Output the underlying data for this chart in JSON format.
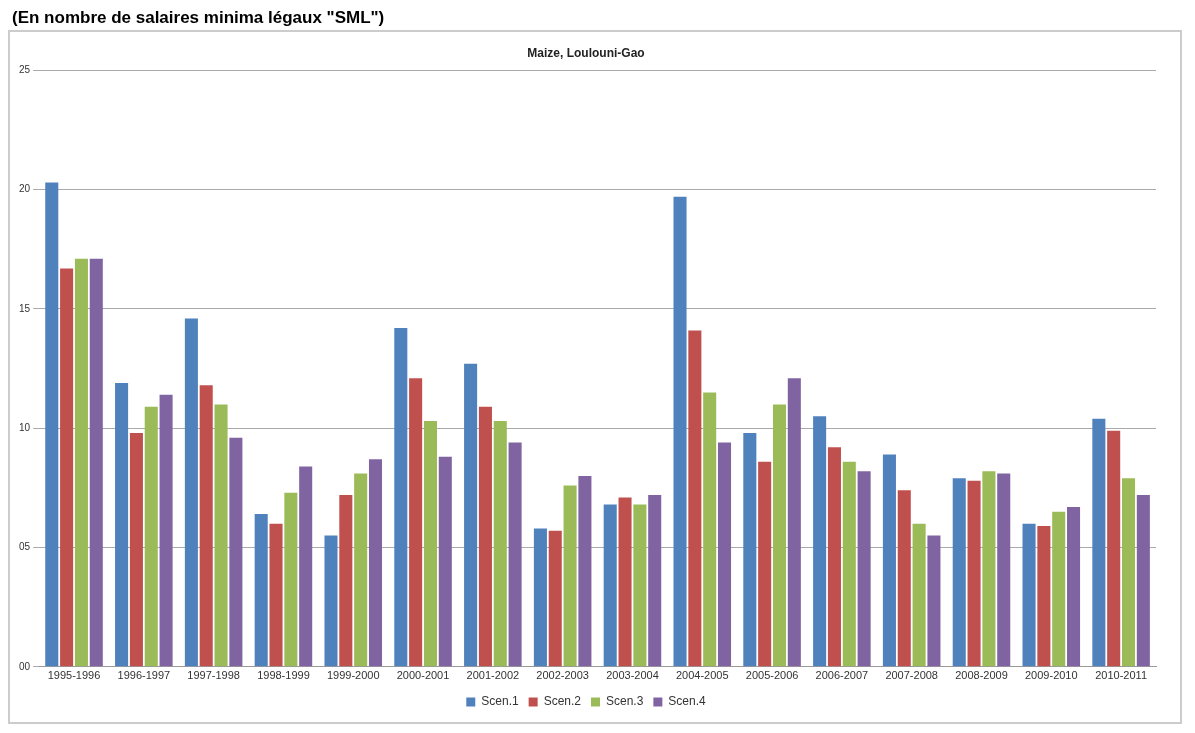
{
  "chart_data": {
    "type": "bar",
    "subtitle": "(En nombre de salaires minima légaux \"SML\")",
    "title": "Maize, Loulouni-Gao",
    "categories": [
      "1995-1996",
      "1996-1997",
      "1997-1998",
      "1998-1999",
      "1999-2000",
      "2000-2001",
      "2001-2002",
      "2002-2003",
      "2003-2004",
      "2004-2005",
      "2005-2006",
      "2006-2007",
      "2007-2008",
      "2008-2009",
      "2009-2010",
      "2010-2011"
    ],
    "series": [
      {
        "name": "Scen.1",
        "color": "#4f81bd",
        "values": [
          20.3,
          11.9,
          14.6,
          6.4,
          5.5,
          14.2,
          12.7,
          5.8,
          6.8,
          19.7,
          9.8,
          10.5,
          8.9,
          7.9,
          6.0,
          10.4
        ]
      },
      {
        "name": "Scen.2",
        "color": "#c0504d",
        "values": [
          16.7,
          9.8,
          11.8,
          6.0,
          7.2,
          12.1,
          10.9,
          5.7,
          7.1,
          14.1,
          8.6,
          9.2,
          7.4,
          7.8,
          5.9,
          9.9
        ]
      },
      {
        "name": "Scen.3",
        "color": "#9bbb59",
        "values": [
          17.1,
          10.9,
          11.0,
          7.3,
          8.1,
          10.3,
          10.3,
          7.6,
          6.8,
          11.5,
          11.0,
          8.6,
          6.0,
          8.2,
          6.5,
          7.9
        ]
      },
      {
        "name": "Scen.4",
        "color": "#8064a2",
        "values": [
          17.1,
          11.4,
          9.6,
          8.4,
          8.7,
          8.8,
          9.4,
          8.0,
          7.2,
          9.4,
          12.1,
          8.2,
          5.5,
          8.1,
          6.7,
          7.2
        ]
      }
    ],
    "ylim": [
      0,
      25
    ],
    "yticks": [
      {
        "value": 0,
        "label": "00"
      },
      {
        "value": 5,
        "label": "05"
      },
      10,
      15,
      20,
      25
    ],
    "grid": "y",
    "legend": "bottom"
  }
}
